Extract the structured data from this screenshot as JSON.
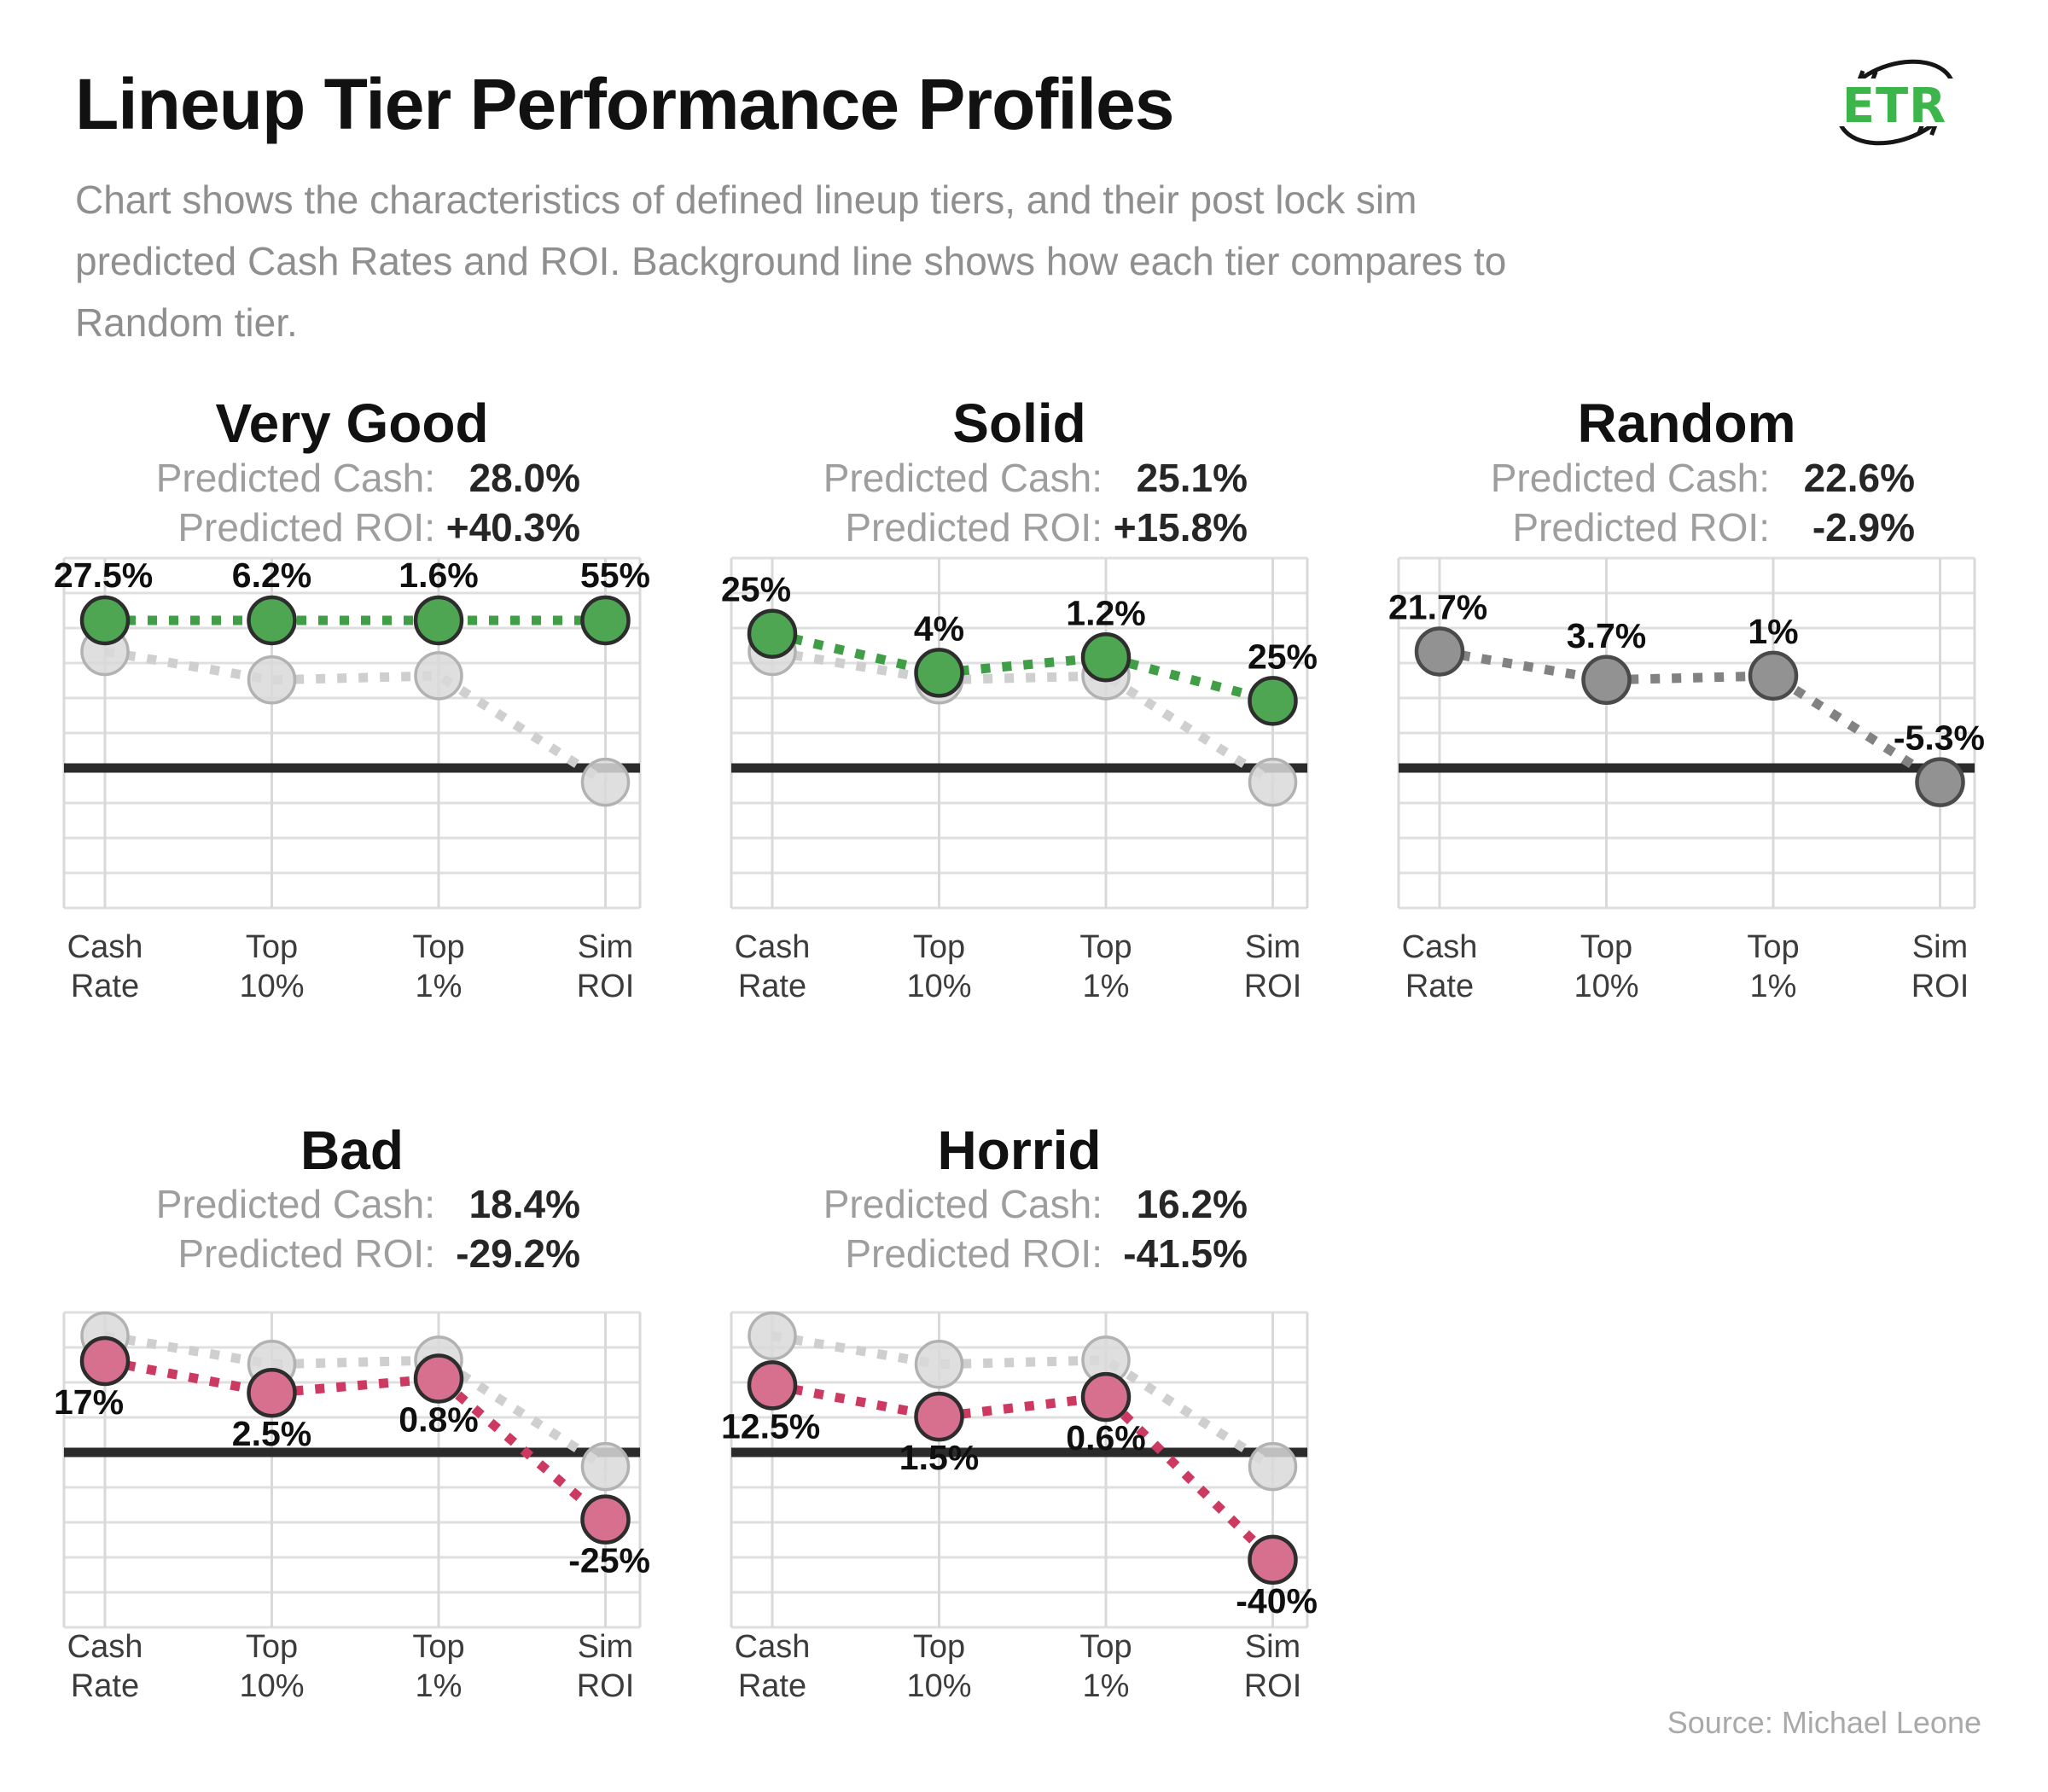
{
  "header": {
    "title": "Lineup Tier Performance Profiles",
    "subtitle_lines": [
      "Chart shows the characteristics of defined lineup tiers, and their post lock sim",
      "predicted Cash Rates and ROI. Background line shows how each tier compares to",
      "Random tier."
    ],
    "logo_text": "ETR",
    "logo_color": "#3cb54a"
  },
  "labels": {
    "predicted_cash": "Predicted Cash:",
    "predicted_roi": "Predicted ROI:"
  },
  "footer": {
    "source": "Source: Michael Leone"
  },
  "chart_data": {
    "type": "line",
    "categories": [
      "Cash Rate",
      "Top 10%",
      "Top 1%",
      "Sim ROI"
    ],
    "axis": [
      {
        "line1": "Cash",
        "line2": "Rate"
      },
      {
        "line1": "Top",
        "line2": "10%"
      },
      {
        "line1": "Top",
        "line2": "1%"
      },
      {
        "line1": "Sim",
        "line2": "ROI"
      }
    ],
    "baseline_series": {
      "name": "Random",
      "values": [
        21.7,
        3.7,
        1.0,
        -5.3
      ],
      "line_color": "#cfcfcf",
      "point_fill": "#d9d9d9",
      "point_stroke": "#b2b2b2"
    },
    "panels": [
      {
        "name": "Very Good",
        "predicted_cash": "28.0%",
        "predicted_roi": "+40.3%",
        "values": [
          27.5,
          6.2,
          1.6,
          55
        ],
        "point_labels": [
          "27.5%",
          "6.2%",
          "1.6%",
          "55%"
        ],
        "line_color": "#3f9e46",
        "point_fill": "#4ea652",
        "point_stroke": "#2d2d2d",
        "label_mode": "toprow",
        "grid_row": 0,
        "grid_col": 0
      },
      {
        "name": "Solid",
        "predicted_cash": "25.1%",
        "predicted_roi": "+15.8%",
        "values": [
          25,
          4,
          1.2,
          25
        ],
        "point_labels": [
          "25%",
          "4%",
          "1.2%",
          "25%"
        ],
        "line_color": "#3f9e46",
        "point_fill": "#4ea652",
        "point_stroke": "#2d2d2d",
        "label_mode": "above",
        "grid_row": 0,
        "grid_col": 1
      },
      {
        "name": "Random",
        "predicted_cash": "22.6%",
        "predicted_roi": "-2.9%",
        "values": [
          21.7,
          3.7,
          1.0,
          -5.3
        ],
        "point_labels": [
          "21.7%",
          "3.7%",
          "1%",
          "-5.3%"
        ],
        "line_color": "#828282",
        "point_fill": "#929292",
        "point_stroke": "#4a4a4a",
        "label_mode": "above",
        "grid_row": 0,
        "grid_col": 2
      },
      {
        "name": "Bad",
        "predicted_cash": "18.4%",
        "predicted_roi": "-29.2%",
        "values": [
          17,
          2.5,
          0.8,
          -25
        ],
        "point_labels": [
          "17%",
          "2.5%",
          "0.8%",
          "-25%"
        ],
        "line_color": "#cc3a62",
        "point_fill": "#d7708f",
        "point_stroke": "#2d2d2d",
        "label_mode": "below",
        "grid_row": 1,
        "grid_col": 0
      },
      {
        "name": "Horrid",
        "predicted_cash": "16.2%",
        "predicted_roi": "-41.5%",
        "values": [
          12.5,
          1.5,
          0.6,
          -40
        ],
        "point_labels": [
          "12.5%",
          "1.5%",
          "0.6%",
          "-40%"
        ],
        "line_color": "#cc3a62",
        "point_fill": "#d7708f",
        "point_stroke": "#2d2d2d",
        "label_mode": "below",
        "grid_row": 1,
        "grid_col": 1
      }
    ],
    "style": {
      "zero_line_color": "#2b2b2b",
      "grid_color": "#dfdfdf",
      "label_color": "#0f0f0f",
      "axis_label_color": "#3c3c3c"
    }
  }
}
